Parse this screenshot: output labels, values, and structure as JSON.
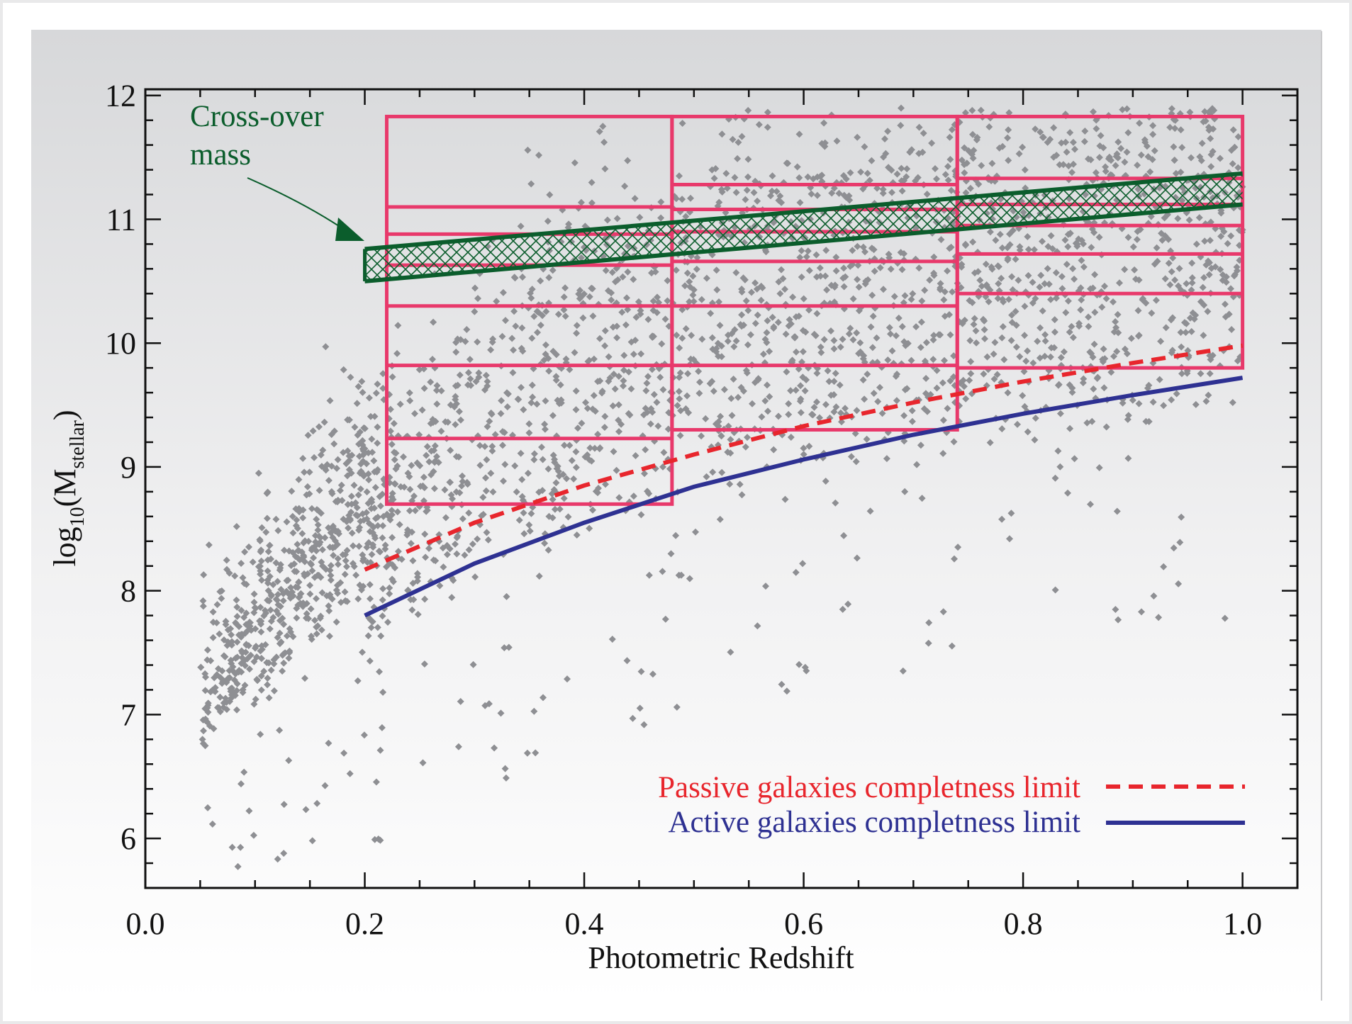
{
  "chart_data": {
    "type": "scatter",
    "xlabel": "Photometric Redshift",
    "ylabel_base": "log",
    "ylabel_sub": "10",
    "ylabel_open": "(M",
    "ylabel_sub2": "stellar",
    "ylabel_close": ")",
    "xlim": [
      0.0,
      1.05
    ],
    "ylim": [
      5.6,
      12.05
    ],
    "x_ticks": [
      0.0,
      0.2,
      0.4,
      0.6,
      0.8,
      1.0
    ],
    "x_tick_labels": [
      "0.0",
      "0.2",
      "0.4",
      "0.6",
      "0.8",
      "1.0"
    ],
    "y_ticks": [
      6,
      7,
      8,
      9,
      10,
      11,
      12
    ],
    "y_tick_labels": [
      "6",
      "7",
      "8",
      "9",
      "10",
      "11",
      "12"
    ],
    "scatter_color": "#8e8f93",
    "series": [
      {
        "name": "Passive galaxies completness limit",
        "color": "#e8262d",
        "style": "dashed",
        "x": [
          0.2,
          0.3,
          0.4,
          0.5,
          0.6,
          0.7,
          0.8,
          0.9,
          1.0
        ],
        "y": [
          8.17,
          8.55,
          8.85,
          9.1,
          9.33,
          9.52,
          9.69,
          9.84,
          9.98
        ]
      },
      {
        "name": "Active galaxies completness limit",
        "color": "#2e3192",
        "style": "solid",
        "x": [
          0.2,
          0.3,
          0.4,
          0.5,
          0.6,
          0.7,
          0.8,
          0.9,
          1.0
        ],
        "y": [
          7.8,
          8.22,
          8.55,
          8.84,
          9.06,
          9.26,
          9.43,
          9.58,
          9.72
        ]
      }
    ],
    "crossover_band": {
      "label_line1": "Cross-over",
      "label_line2": "mass",
      "color": "#0b5d2c",
      "upper": {
        "x": [
          0.2,
          1.0
        ],
        "y": [
          10.76,
          11.37
        ]
      },
      "lower": {
        "x": [
          0.2,
          1.0
        ],
        "y": [
          10.5,
          11.12
        ]
      }
    },
    "bins_color": "#e8396b",
    "bins": [
      {
        "z_min": 0.22,
        "z_max": 0.48,
        "edges": [
          8.7,
          9.23,
          9.82,
          10.3,
          10.63,
          10.88,
          11.1,
          11.83
        ]
      },
      {
        "z_min": 0.48,
        "z_max": 0.74,
        "edges": [
          9.3,
          9.82,
          10.3,
          10.66,
          10.9,
          11.08,
          11.28,
          11.83
        ]
      },
      {
        "z_min": 0.74,
        "z_max": 1.0,
        "edges": [
          9.8,
          10.4,
          10.72,
          10.95,
          11.12,
          11.33,
          11.83
        ]
      }
    ],
    "legend_position": "bottom-right"
  }
}
